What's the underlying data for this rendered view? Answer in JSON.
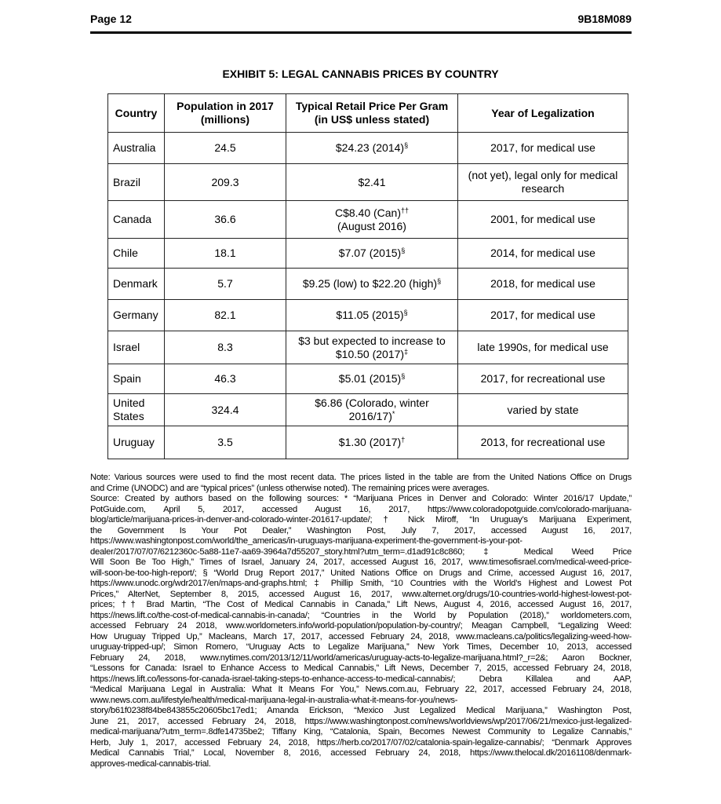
{
  "header": {
    "page": "Page 12",
    "code": "9B18M089"
  },
  "title": "EXHIBIT 5: LEGAL CANNABIS PRICES BY COUNTRY",
  "table": {
    "headers": [
      "Country",
      "Population in 2017 (millions)",
      "Typical Retail Price Per Gram (in US$ unless stated)",
      "Year of Legalization"
    ],
    "rows": [
      {
        "country": "Australia",
        "population": "24.5",
        "price": "$24.23 (2014)",
        "price_note": "§",
        "year": "2017, for medical use"
      },
      {
        "country": "Brazil",
        "population": "209.3",
        "price": "$2.41",
        "price_note": "",
        "year": "(not yet), legal only for medical research"
      },
      {
        "country": "Canada",
        "population": "36.6",
        "price": "C$8.40 (Can)",
        "price_note": "††",
        "price2": "(August 2016)",
        "year": "2001, for medical use"
      },
      {
        "country": "Chile",
        "population": "18.1",
        "price": "$7.07 (2015)",
        "price_note": "§",
        "year": "2014, for medical use"
      },
      {
        "country": "Denmark",
        "population": "5.7",
        "price": "$9.25 (low) to $22.20 (high)",
        "price_note": "§",
        "year": "2018, for medical use"
      },
      {
        "country": "Germany",
        "population": "82.1",
        "price": "$11.05 (2015)",
        "price_note": "§",
        "year": "2017, for medical use"
      },
      {
        "country": "Israel",
        "population": "8.3",
        "price": "$3 but expected to increase to $10.50 (2017)",
        "price_note": "‡",
        "year": "late 1990s, for medical use"
      },
      {
        "country": "Spain",
        "population": "46.3",
        "price": "$5.01 (2015)",
        "price_note": "§",
        "year": "2017, for recreational use"
      },
      {
        "country": "United States",
        "population": "324.4",
        "price": "$6.86 (Colorado, winter 2016/17)",
        "price_note": "*",
        "year": "varied by state"
      },
      {
        "country": "Uruguay",
        "population": "3.5",
        "price": "$1.30 (2017)",
        "price_note": "†",
        "year": "2013, for recreational use"
      }
    ]
  },
  "notes": [
    "Note: Various sources were used to find the most recent data. The prices listed in the table are from the United Nations Office on Drugs",
    "and Crime (UNODC) and are “typical prices” (unless otherwise noted). The remaining prices were averages.",
    "Source: Created by authors based on the following sources: * “Marijuana Prices in Denver and Colorado: Winter 2016/17 Update,”",
    "PotGuide.com, April 5, 2017, accessed August 16, 2017, https://www.coloradopotguide.com/colorado-marijuana-",
    "blog/article/marijuana-prices-in-denver-and-colorado-winter-201617-update/; † Nick Miroff, “In Uruguay’s Marijuana Experiment,",
    "the Government Is Your Pot Dealer,” Washington Post, July 7, 2017, accessed August 16, 2017,",
    "https://www.washingtonpost.com/world/the_americas/in-uruguays-marijuana-experiment-the-government-is-your-pot-",
    "dealer/2017/07/07/6212360c-5a88-11e7-aa69-3964a7d55207_story.html?utm_term=.d1ad91c8c860; ‡ Medical Weed Price",
    "Will Soon Be Too High,” Times of Israel, January 24, 2017, accessed August 16, 2017, www.timesofisrael.com/medical-weed-price-",
    "will-soon-be-too-high-report/; § “World Drug Report 2017,” United Nations Office on Drugs and Crime, accessed August 16, 2017,",
    "https://www.unodc.org/wdr2017/en/maps-and-graphs.html; ‡ Phillip Smith, “10 Countries with the World’s Highest and Lowest Pot",
    "Prices,” AlterNet, September 8, 2015, accessed August 16, 2017, www.alternet.org/drugs/10-countries-world-highest-lowest-pot-",
    "prices; †† Brad Martin, “The Cost of Medical Cannabis in Canada,” Lift News, August 4, 2016, accessed August 16, 2017,",
    "https://news.lift.co/the-cost-of-medical-cannabis-in-canada/; “Countries in the World by Population (2018),” worldometers.com,",
    "accessed February 24 2018, www.worldometers.info/world-population/population-by-country/; Meagan Campbell, “Legalizing Weed:",
    "How Uruguay Tripped Up,” Macleans, March 17, 2017, accessed February 24, 2018, www.macleans.ca/politics/legalizing-weed-how-",
    "uruguay-tripped-up/; Simon Romero, “Uruguay Acts to Legalize Marijuana,” New York Times, December 10, 2013, accessed",
    "February 24, 2018, www.nytimes.com/2013/12/11/world/americas/uruguay-acts-to-legalize-marijuana.html?_r=2&; Aaron Bockner,",
    "“Lessons for Canada: Israel to Enhance Access to Medical Cannabis,” Lift News, December 7, 2015, accessed February 24, 2018,",
    "https://news.lift.co/lessons-for-canada-israel-taking-steps-to-enhance-access-to-medical-cannabis/; Debra Killalea and AAP,",
    "“Medical Marijuana Legal in Australia: What It Means For You,” News.com.au, February 22, 2017, accessed February 24, 2018,",
    "www.news.com.au/lifestyle/health/medical-marijuana-legal-in-australia-what-it-means-for-you/news-",
    "story/b61f0238f84be843855c20605bc17ed1; Amanda Erickson, “Mexico Just Legalized Medical Marijuana,” Washington Post,",
    "June 21, 2017, accessed February 24, 2018, https://www.washingtonpost.com/news/worldviews/wp/2017/06/21/mexico-just-legalized-",
    "medical-marijuana/?utm_term=.8dfe14735be2; Tiffany King, “Catalonia, Spain, Becomes Newest Community to Legalize Cannabis,”",
    "Herb, July 1, 2017, accessed February 24, 2018, https://herb.co/2017/07/02/catalonia-spain-legalize-cannabis/; “Denmark Approves",
    "Medical Cannabis Trial,” Local, November 8, 2016, accessed February 24, 2018, https://www.thelocal.dk/20161108/denmark-",
    "approves-medical-cannabis-trial."
  ]
}
